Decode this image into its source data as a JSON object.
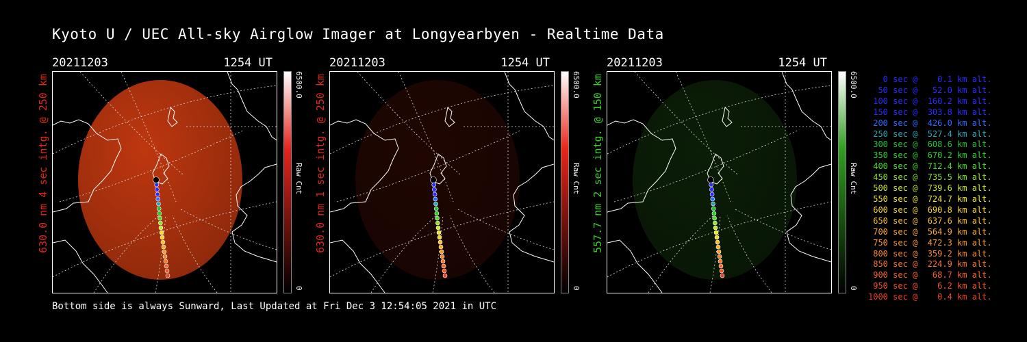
{
  "title": "Kyoto U / UEC All-sky Airglow Imager at Longyearbyen - Realtime Data",
  "footer": "Bottom side is always Sunward, Last Updated at Fri Dec  3 12:54:05 2021 in UTC",
  "panels": [
    {
      "date": "20211203",
      "time": "1254 UT",
      "ylabel": "630.0 nm 4 sec intg. @ 250 km",
      "label_color": "#e0281c",
      "cbar_max": "6500.0",
      "cbar_min": "0",
      "cbar_unit": "Raw Cnt",
      "cbar_color": "#e8241a",
      "glow_color": "#c83a10",
      "glow_level": 0.95
    },
    {
      "date": "20211203",
      "time": "1254 UT",
      "ylabel": "630.0 nm 1 sec intg. @ 250 km",
      "label_color": "#e0281c",
      "cbar_max": "6500.0",
      "cbar_min": "0",
      "cbar_unit": "Raw Cnt",
      "cbar_color": "#e8241a",
      "glow_color": "#5a1208",
      "glow_level": 0.35
    },
    {
      "date": "20211203",
      "time": "1254 UT",
      "ylabel": "557.7 nm 2 sec intg. @ 150 km",
      "label_color": "#3ecf2e",
      "cbar_max": "6500.0",
      "cbar_min": "0",
      "cbar_unit": "Raw Cnt",
      "cbar_color": "#2f9e1f",
      "glow_color": "#1b4a12",
      "glow_level": 0.4
    }
  ],
  "legend": [
    {
      "text": "   0 sec @    0.1 km alt.",
      "color": "#2b2bff"
    },
    {
      "text": "  50 sec @   52.0 km alt.",
      "color": "#2b2bff"
    },
    {
      "text": " 100 sec @  160.2 km alt.",
      "color": "#2b2bff"
    },
    {
      "text": " 150 sec @  303.8 km alt.",
      "color": "#2b2bff"
    },
    {
      "text": " 200 sec @  426.0 km alt.",
      "color": "#2b6bff"
    },
    {
      "text": " 250 sec @  527.4 km alt.",
      "color": "#2aa6b5"
    },
    {
      "text": " 300 sec @  608.6 km alt.",
      "color": "#22c23a"
    },
    {
      "text": " 350 sec @  670.2 km alt.",
      "color": "#28d22a"
    },
    {
      "text": " 400 sec @  712.4 km alt.",
      "color": "#49dc2a"
    },
    {
      "text": " 450 sec @  735.5 km alt.",
      "color": "#8ee22a"
    },
    {
      "text": " 500 sec @  739.6 km alt.",
      "color": "#c9e62a"
    },
    {
      "text": " 550 sec @  724.7 km alt.",
      "color": "#eee82a"
    },
    {
      "text": " 600 sec @  690.8 km alt.",
      "color": "#f5d52a"
    },
    {
      "text": " 650 sec @  637.6 km alt.",
      "color": "#f5bf2a"
    },
    {
      "text": " 700 sec @  564.9 km alt.",
      "color": "#f5a82a"
    },
    {
      "text": " 750 sec @  472.3 km alt.",
      "color": "#f59a2a"
    },
    {
      "text": " 800 sec @  359.2 km alt.",
      "color": "#f5882a"
    },
    {
      "text": " 850 sec @  224.9 km alt.",
      "color": "#f5762a"
    },
    {
      "text": " 900 sec @   68.7 km alt.",
      "color": "#f5642a"
    },
    {
      "text": " 950 sec @    6.2 km alt.",
      "color": "#f0522a"
    },
    {
      "text": "1000 sec @    0.4 km alt.",
      "color": "#e8402a"
    }
  ]
}
